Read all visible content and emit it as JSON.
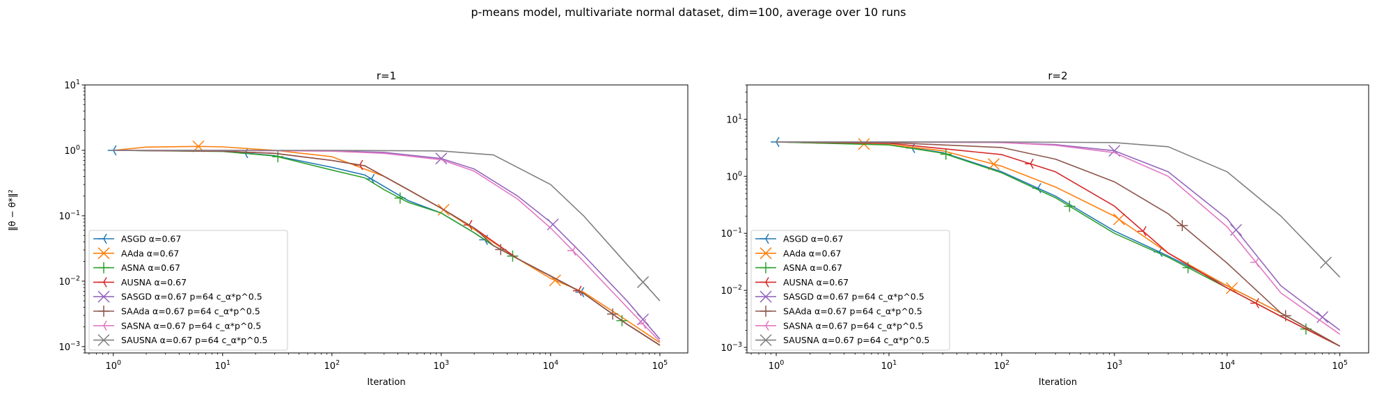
{
  "figure": {
    "suptitle": "p-means model, multivariate normal dataset, dim=100, average over 10 runs",
    "ylabel": "‖θ − θ*‖²"
  },
  "colors": {
    "ASGD": "#1f77b4",
    "AAda": "#ff7f0e",
    "ASNA": "#2ca02c",
    "AUSNA": "#d62728",
    "SASGD": "#9467bd",
    "SAAda": "#8c564b",
    "SASNA": "#e377c2",
    "SAUSNA": "#7f7f7f"
  },
  "chart_data": [
    {
      "type": "line",
      "title": "r=1",
      "xlabel": "Iteration",
      "ylabel": "‖θ − θ*‖²",
      "xscale": "log",
      "yscale": "log",
      "xlim": [
        0.55,
        180000
      ],
      "ylim": [
        0.0008,
        10
      ],
      "xticks": [
        1,
        10,
        100,
        1000,
        10000,
        100000
      ],
      "xtick_labels": [
        "10^0",
        "10^1",
        "10^2",
        "10^3",
        "10^4",
        "10^5"
      ],
      "yticks": [
        0.001,
        0.01,
        0.1,
        1,
        10
      ],
      "ytick_labels": [
        "10^-3",
        "10^-2",
        "10^-1",
        "10^0",
        "10^1"
      ],
      "legend_position": "lower-left",
      "series": [
        {
          "name": "ASGD α=0.67",
          "key": "ASGD",
          "marker": "tri_left",
          "x": [
            1,
            10,
            30,
            100,
            200,
            300,
            500,
            1000,
            2000,
            3000,
            5000,
            10000,
            20000,
            50000,
            100000
          ],
          "y": [
            1.0,
            0.97,
            0.83,
            0.55,
            0.42,
            0.28,
            0.17,
            0.11,
            0.055,
            0.035,
            0.022,
            0.012,
            0.0065,
            0.0022,
            0.00105
          ],
          "markers_at": [
            1,
            16,
            230,
            2500,
            19000
          ]
        },
        {
          "name": "AAda α=0.67",
          "key": "AAda",
          "marker": "x",
          "x": [
            1,
            2,
            6,
            10,
            30,
            100,
            300,
            1000,
            2000,
            5000,
            10000,
            20000,
            50000,
            100000
          ],
          "y": [
            1.0,
            1.12,
            1.15,
            1.13,
            1.0,
            0.8,
            0.4,
            0.13,
            0.062,
            0.022,
            0.011,
            0.0068,
            0.0025,
            0.00115
          ],
          "markers_at": [
            6,
            1050,
            11000
          ]
        },
        {
          "name": "ASNA α=0.67",
          "key": "ASNA",
          "marker": "plus",
          "x": [
            1,
            10,
            30,
            100,
            200,
            300,
            500,
            1000,
            2000,
            3000,
            5000,
            10000,
            20000,
            50000,
            100000
          ],
          "y": [
            1.0,
            0.96,
            0.82,
            0.5,
            0.38,
            0.25,
            0.16,
            0.11,
            0.055,
            0.035,
            0.022,
            0.012,
            0.0065,
            0.0022,
            0.00105
          ],
          "markers_at": [
            32,
            420,
            4500,
            45000
          ]
        },
        {
          "name": "AUSNA α=0.67",
          "key": "AUSNA",
          "marker": "tri_left",
          "x": [
            1,
            10,
            30,
            100,
            200,
            300,
            500,
            1000,
            2000,
            5000,
            10000,
            20000,
            50000,
            100000
          ],
          "y": [
            1.0,
            0.97,
            0.9,
            0.7,
            0.58,
            0.4,
            0.25,
            0.13,
            0.065,
            0.022,
            0.012,
            0.0065,
            0.0022,
            0.00105
          ],
          "markers_at": [
            180,
            1800,
            18000
          ]
        },
        {
          "name": "SASGD α=0.67 p=64 c_α*p^0.5",
          "key": "SASGD",
          "marker": "x",
          "x": [
            1,
            10,
            100,
            300,
            1000,
            2000,
            5000,
            10000,
            20000,
            50000,
            100000
          ],
          "y": [
            1.0,
            1.0,
            0.98,
            0.93,
            0.75,
            0.52,
            0.2,
            0.08,
            0.025,
            0.005,
            0.0013
          ],
          "markers_at": [
            1000,
            10500,
            70000
          ]
        },
        {
          "name": "SAAda α=0.67 p=64 c_α*p^0.5",
          "key": "SAAda",
          "marker": "plus",
          "x": [
            1,
            10,
            30,
            100,
            200,
            300,
            500,
            1000,
            2000,
            3000,
            5000,
            10000,
            20000,
            50000,
            100000
          ],
          "y": [
            1.0,
            0.97,
            0.9,
            0.7,
            0.58,
            0.4,
            0.25,
            0.13,
            0.065,
            0.035,
            0.022,
            0.012,
            0.0065,
            0.0022,
            0.00105
          ],
          "markers_at": [
            3500,
            37000
          ]
        },
        {
          "name": "SASNA α=0.67 p=64 c_α*p^0.5",
          "key": "SASNA",
          "marker": "tri_left",
          "x": [
            1,
            10,
            100,
            300,
            1000,
            2000,
            5000,
            10000,
            20000,
            50000,
            100000
          ],
          "y": [
            1.0,
            1.0,
            0.97,
            0.9,
            0.72,
            0.48,
            0.18,
            0.065,
            0.02,
            0.004,
            0.0012
          ],
          "markers_at": [
            16000,
            70000
          ]
        },
        {
          "name": "SAUSNA α=0.67 p=64 c_α*p^0.5",
          "key": "SAUSNA",
          "marker": "x",
          "x": [
            1,
            10,
            100,
            1000,
            3000,
            10000,
            20000,
            50000,
            100000
          ],
          "y": [
            1.0,
            1.0,
            1.0,
            0.98,
            0.85,
            0.3,
            0.1,
            0.018,
            0.005
          ],
          "markers_at": [
            70000
          ]
        }
      ]
    },
    {
      "type": "line",
      "title": "r=2",
      "xlabel": "Iteration",
      "ylabel": "",
      "xscale": "log",
      "yscale": "log",
      "xlim": [
        0.55,
        180000
      ],
      "ylim": [
        0.0008,
        40
      ],
      "xticks": [
        1,
        10,
        100,
        1000,
        10000,
        100000
      ],
      "xtick_labels": [
        "10^0",
        "10^1",
        "10^2",
        "10^3",
        "10^4",
        "10^5"
      ],
      "yticks": [
        0.001,
        0.01,
        0.1,
        1,
        10
      ],
      "ytick_labels": [
        "10^-3",
        "10^-2",
        "10^-1",
        "10^0",
        "10^1"
      ],
      "legend_position": "lower-left",
      "series": [
        {
          "name": "ASGD α=0.67",
          "key": "ASGD",
          "marker": "tri_left",
          "x": [
            1,
            10,
            30,
            100,
            300,
            1000,
            3000,
            10000,
            30000,
            100000
          ],
          "y": [
            4.0,
            3.6,
            2.6,
            1.2,
            0.45,
            0.11,
            0.04,
            0.012,
            0.004,
            0.00105
          ],
          "markers_at": [
            1,
            16,
            210,
            2500
          ]
        },
        {
          "name": "AAda α=0.67",
          "key": "AAda",
          "marker": "x",
          "x": [
            1,
            10,
            30,
            100,
            300,
            1000,
            3000,
            10000,
            30000,
            100000
          ],
          "y": [
            4.0,
            3.6,
            2.8,
            1.5,
            0.65,
            0.2,
            0.045,
            0.012,
            0.004,
            0.00105
          ],
          "markers_at": [
            6,
            85,
            1100,
            11000
          ]
        },
        {
          "name": "ASNA α=0.67",
          "key": "ASNA",
          "marker": "plus",
          "x": [
            1,
            10,
            30,
            100,
            300,
            1000,
            3000,
            10000,
            30000,
            100000
          ],
          "y": [
            4.0,
            3.55,
            2.55,
            1.15,
            0.42,
            0.1,
            0.038,
            0.011,
            0.0035,
            0.00105
          ],
          "markers_at": [
            32,
            400,
            4500,
            50000
          ]
        },
        {
          "name": "AUSNA α=0.67",
          "key": "AUSNA",
          "marker": "tri_left",
          "x": [
            1,
            10,
            100,
            300,
            1000,
            3000,
            10000,
            30000,
            100000
          ],
          "y": [
            4.0,
            3.8,
            2.4,
            1.2,
            0.3,
            0.045,
            0.011,
            0.0035,
            0.00105
          ],
          "markers_at": [
            180,
            1800,
            18000
          ]
        },
        {
          "name": "SASGD α=0.67 p=64 c_α*p^0.5",
          "key": "SASGD",
          "marker": "x",
          "x": [
            1,
            10,
            100,
            300,
            1000,
            3000,
            10000,
            30000,
            100000
          ],
          "y": [
            4.0,
            4.0,
            3.9,
            3.6,
            2.8,
            1.2,
            0.18,
            0.012,
            0.002
          ],
          "markers_at": [
            1000,
            12000,
            70000
          ]
        },
        {
          "name": "SAAda α=0.67 p=64 c_α*p^0.5",
          "key": "SAAda",
          "marker": "plus",
          "x": [
            1,
            10,
            100,
            300,
            1000,
            3000,
            10000,
            30000,
            100000
          ],
          "y": [
            4.0,
            3.9,
            3.2,
            2.0,
            0.8,
            0.22,
            0.03,
            0.004,
            0.00105
          ],
          "markers_at": [
            4000,
            33000
          ]
        },
        {
          "name": "SASNA α=0.67 p=64 c_α*p^0.5",
          "key": "SASNA",
          "marker": "tri_left",
          "x": [
            1,
            10,
            100,
            300,
            1000,
            3000,
            10000,
            30000,
            100000
          ],
          "y": [
            4.0,
            4.0,
            3.9,
            3.5,
            2.6,
            1.0,
            0.13,
            0.009,
            0.0017
          ],
          "markers_at": [
            18000
          ]
        },
        {
          "name": "SAUSNA α=0.67 p=64 c_α*p^0.5",
          "key": "SAUSNA",
          "marker": "x",
          "x": [
            1,
            10,
            100,
            1000,
            3000,
            10000,
            30000,
            100000
          ],
          "y": [
            4.0,
            4.0,
            4.0,
            3.9,
            3.3,
            1.2,
            0.2,
            0.017
          ],
          "markers_at": [
            75000
          ]
        }
      ]
    }
  ]
}
